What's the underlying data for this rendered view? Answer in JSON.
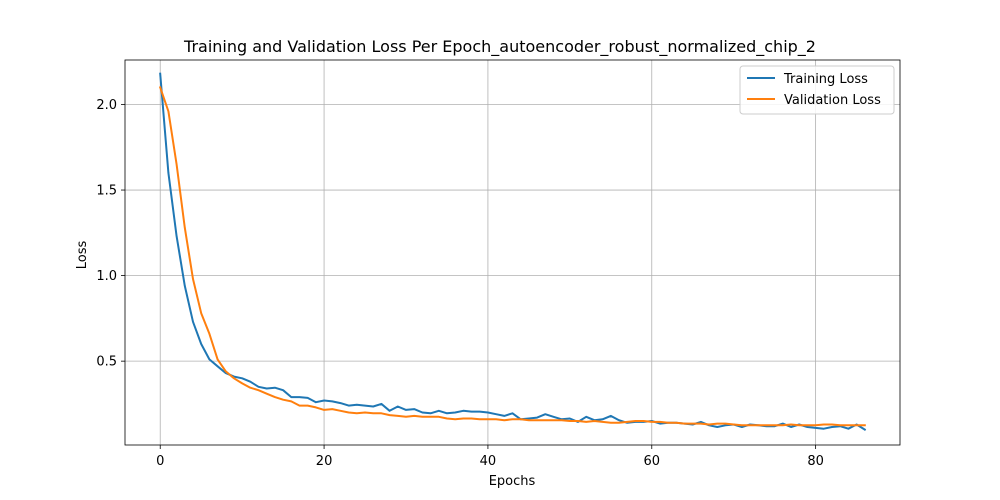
{
  "chart_data": {
    "type": "line",
    "title": "Training and Validation Loss Per Epoch_autoencoder_robust_normalized_chip_2",
    "xlabel": "Epochs",
    "ylabel": "Loss",
    "xlim": [
      -4.3,
      90.3
    ],
    "ylim": [
      0.01,
      2.26
    ],
    "xticks": [
      0,
      20,
      40,
      60,
      80
    ],
    "yticks": [
      0.5,
      1.0,
      1.5,
      2.0
    ],
    "xtick_labels": [
      "0",
      "20",
      "40",
      "60",
      "80"
    ],
    "ytick_labels": [
      "0.5",
      "1.0",
      "1.5",
      "2.0"
    ],
    "grid": true,
    "legend_position": "top-right",
    "x": [
      0,
      1,
      2,
      3,
      4,
      5,
      6,
      7,
      8,
      9,
      10,
      11,
      12,
      13,
      14,
      15,
      16,
      17,
      18,
      19,
      20,
      21,
      22,
      23,
      24,
      25,
      26,
      27,
      28,
      29,
      30,
      31,
      32,
      33,
      34,
      35,
      36,
      37,
      38,
      39,
      40,
      41,
      42,
      43,
      44,
      45,
      46,
      47,
      48,
      49,
      50,
      51,
      52,
      53,
      54,
      55,
      56,
      57,
      58,
      59,
      60,
      61,
      62,
      63,
      64,
      65,
      66,
      67,
      68,
      69,
      70,
      71,
      72,
      73,
      74,
      75,
      76,
      77,
      78,
      79,
      80,
      81,
      82,
      83,
      84,
      85,
      86
    ],
    "series": [
      {
        "name": "Training Loss",
        "color": "#1f77b4",
        "values": [
          2.18,
          1.6,
          1.23,
          0.94,
          0.73,
          0.6,
          0.51,
          0.47,
          0.43,
          0.41,
          0.4,
          0.38,
          0.35,
          0.34,
          0.345,
          0.33,
          0.29,
          0.29,
          0.285,
          0.26,
          0.27,
          0.265,
          0.255,
          0.24,
          0.245,
          0.24,
          0.235,
          0.25,
          0.21,
          0.235,
          0.215,
          0.22,
          0.2,
          0.195,
          0.21,
          0.195,
          0.2,
          0.21,
          0.205,
          0.205,
          0.2,
          0.19,
          0.18,
          0.195,
          0.16,
          0.165,
          0.17,
          0.19,
          0.175,
          0.16,
          0.165,
          0.145,
          0.175,
          0.155,
          0.16,
          0.18,
          0.155,
          0.14,
          0.145,
          0.145,
          0.15,
          0.135,
          0.14,
          0.14,
          0.135,
          0.13,
          0.145,
          0.125,
          0.115,
          0.125,
          0.13,
          0.115,
          0.13,
          0.125,
          0.12,
          0.12,
          0.135,
          0.115,
          0.13,
          0.115,
          0.11,
          0.105,
          0.115,
          0.12,
          0.105,
          0.13,
          0.1
        ]
      },
      {
        "name": "Validation Loss",
        "color": "#ff7f0e",
        "values": [
          2.1,
          1.96,
          1.65,
          1.28,
          0.98,
          0.78,
          0.66,
          0.51,
          0.44,
          0.4,
          0.37,
          0.345,
          0.33,
          0.31,
          0.29,
          0.275,
          0.265,
          0.24,
          0.24,
          0.23,
          0.215,
          0.22,
          0.21,
          0.2,
          0.195,
          0.2,
          0.195,
          0.195,
          0.185,
          0.18,
          0.175,
          0.18,
          0.175,
          0.175,
          0.175,
          0.165,
          0.16,
          0.165,
          0.165,
          0.16,
          0.16,
          0.16,
          0.155,
          0.16,
          0.16,
          0.155,
          0.155,
          0.155,
          0.155,
          0.155,
          0.15,
          0.15,
          0.145,
          0.15,
          0.145,
          0.14,
          0.14,
          0.145,
          0.15,
          0.15,
          0.145,
          0.145,
          0.14,
          0.14,
          0.135,
          0.135,
          0.135,
          0.13,
          0.135,
          0.135,
          0.13,
          0.125,
          0.125,
          0.125,
          0.125,
          0.125,
          0.125,
          0.13,
          0.125,
          0.125,
          0.125,
          0.13,
          0.13,
          0.125,
          0.125,
          0.125,
          0.125
        ]
      }
    ]
  }
}
